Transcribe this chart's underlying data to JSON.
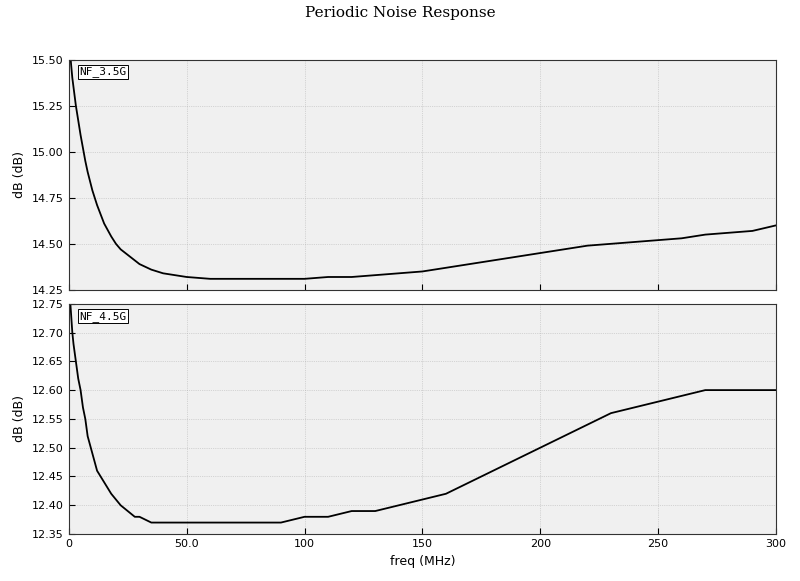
{
  "title": "Periodic Noise Response",
  "xlabel": "freq (MHz)",
  "ylabel1": "dB (dB)",
  "ylabel2": "dB (dB)",
  "label1": "NF_3.5G",
  "label2": "NF_4.5G",
  "xlim": [
    0,
    300
  ],
  "ylim1": [
    14.25,
    15.5
  ],
  "ylim2": [
    12.35,
    12.75
  ],
  "yticks1": [
    14.25,
    14.5,
    14.75,
    15.0,
    15.25,
    15.5
  ],
  "yticks2": [
    12.35,
    12.4,
    12.45,
    12.5,
    12.55,
    12.6,
    12.65,
    12.7,
    12.75
  ],
  "xticks": [
    0,
    50.0,
    100,
    150,
    200,
    250,
    300
  ],
  "xticklabels": [
    "0",
    "50.0",
    "100",
    "150",
    "200",
    "250",
    "300"
  ],
  "bg_color": "#f0f0f0",
  "fig_color": "#ffffff",
  "line_color": "#000000",
  "grid_color": "#aaaaaa",
  "curve1_x": [
    0.3,
    0.5,
    1,
    1.5,
    2,
    3,
    4,
    5,
    6,
    7,
    8,
    10,
    12,
    15,
    18,
    20,
    22,
    25,
    28,
    30,
    35,
    40,
    45,
    50,
    60,
    70,
    80,
    90,
    100,
    110,
    120,
    130,
    140,
    150,
    160,
    170,
    180,
    190,
    200,
    210,
    220,
    230,
    240,
    250,
    260,
    270,
    280,
    290,
    300
  ],
  "curve1_y": [
    15.58,
    15.55,
    15.47,
    15.4,
    15.35,
    15.25,
    15.17,
    15.09,
    15.02,
    14.95,
    14.89,
    14.79,
    14.71,
    14.61,
    14.54,
    14.5,
    14.47,
    14.44,
    14.41,
    14.39,
    14.36,
    14.34,
    14.33,
    14.32,
    14.31,
    14.31,
    14.31,
    14.31,
    14.31,
    14.32,
    14.32,
    14.33,
    14.34,
    14.35,
    14.37,
    14.39,
    14.41,
    14.43,
    14.45,
    14.47,
    14.49,
    14.5,
    14.51,
    14.52,
    14.53,
    14.55,
    14.56,
    14.57,
    14.6
  ],
  "curve2_x": [
    0.3,
    0.5,
    1,
    1.5,
    2,
    3,
    4,
    5,
    6,
    7,
    8,
    10,
    12,
    15,
    18,
    20,
    22,
    25,
    28,
    30,
    35,
    40,
    45,
    50,
    60,
    70,
    80,
    90,
    100,
    110,
    120,
    130,
    140,
    150,
    160,
    170,
    180,
    190,
    200,
    210,
    220,
    230,
    240,
    250,
    260,
    270,
    280,
    290,
    300
  ],
  "curve2_y": [
    12.78,
    12.76,
    12.73,
    12.7,
    12.68,
    12.65,
    12.62,
    12.6,
    12.57,
    12.55,
    12.52,
    12.49,
    12.46,
    12.44,
    12.42,
    12.41,
    12.4,
    12.39,
    12.38,
    12.38,
    12.37,
    12.37,
    12.37,
    12.37,
    12.37,
    12.37,
    12.37,
    12.37,
    12.38,
    12.38,
    12.39,
    12.39,
    12.4,
    12.41,
    12.42,
    12.44,
    12.46,
    12.48,
    12.5,
    12.52,
    12.54,
    12.56,
    12.57,
    12.58,
    12.59,
    12.6,
    12.6,
    12.6,
    12.6
  ]
}
